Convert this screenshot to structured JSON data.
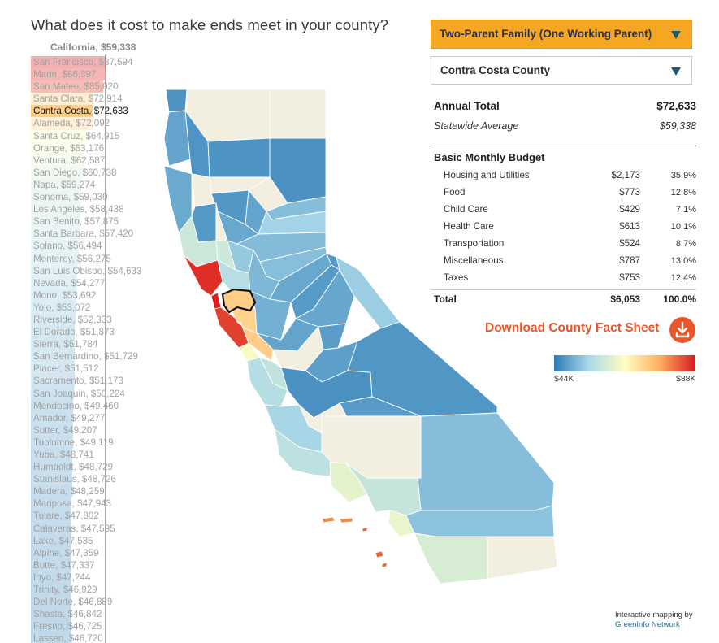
{
  "title": "What does it cost to make ends meet in your county?",
  "statewide_label": "California, $59,338",
  "family_dropdown": "Two-Parent Family (One Working Parent)",
  "county_dropdown": "Contra Costa County",
  "summary": {
    "annual_total_label": "Annual Total",
    "annual_total_value": "$72,633",
    "statewide_label": "Statewide Average",
    "statewide_value": "$59,338"
  },
  "budget": {
    "heading": "Basic Monthly Budget",
    "rows": [
      {
        "name": "Housing and Utilities",
        "amount": "$2,173",
        "percent": "35.9%"
      },
      {
        "name": "Food",
        "amount": "$773",
        "percent": "12.8%"
      },
      {
        "name": "Child Care",
        "amount": "$429",
        "percent": "7.1%"
      },
      {
        "name": "Health Care",
        "amount": "$613",
        "percent": "10.1%"
      },
      {
        "name": "Transportation",
        "amount": "$524",
        "percent": "8.7%"
      },
      {
        "name": "Miscellaneous",
        "amount": "$787",
        "percent": "13.0%"
      },
      {
        "name": "Taxes",
        "amount": "$753",
        "percent": "12.4%"
      }
    ],
    "total": {
      "name": "Total",
      "amount": "$6,053",
      "percent": "100.0%"
    }
  },
  "download_label": "Download County Fact Sheet",
  "legend": {
    "min_label": "$44K",
    "max_label": "$88K",
    "min_value": 44000,
    "max_value": 88000,
    "colors": [
      "#2c7bb6",
      "#abd9e9",
      "#ffffbf",
      "#fdae61",
      "#d7191c"
    ]
  },
  "credit_line1": "Interactive mapping by",
  "credit_line2": "GreenInfo Network",
  "selected_county": "Contra Costa",
  "counties": [
    {
      "label": "San Francisco, $87,594",
      "value": 87594
    },
    {
      "label": "Marin, $86,397",
      "value": 86397
    },
    {
      "label": "San Mateo, $85,020",
      "value": 85020
    },
    {
      "label": "Santa Clara, $72,914",
      "value": 72914
    },
    {
      "label": "Contra Costa, $72,633",
      "value": 72633
    },
    {
      "label": "Alameda, $72,092",
      "value": 72092
    },
    {
      "label": "Santa Cruz, $64,915",
      "value": 64915
    },
    {
      "label": "Orange, $63,176",
      "value": 63176
    },
    {
      "label": "Ventura, $62,587",
      "value": 62587
    },
    {
      "label": "San Diego, $60,738",
      "value": 60738
    },
    {
      "label": "Napa, $59,274",
      "value": 59274
    },
    {
      "label": "Sonoma, $59,030",
      "value": 59030
    },
    {
      "label": "Los Angeles, $58,438",
      "value": 58438
    },
    {
      "label": "San Benito, $57,875",
      "value": 57875
    },
    {
      "label": "Santa Barbara, $57,420",
      "value": 57420
    },
    {
      "label": "Solano, $56,494",
      "value": 56494
    },
    {
      "label": "Monterey, $56,275",
      "value": 56275
    },
    {
      "label": "San Luis Obispo, $54,633",
      "value": 54633
    },
    {
      "label": "Nevada, $54,277",
      "value": 54277
    },
    {
      "label": "Mono, $53,692",
      "value": 53692
    },
    {
      "label": "Yolo, $53,072",
      "value": 53072
    },
    {
      "label": "Riverside, $52,333",
      "value": 52333
    },
    {
      "label": "El Dorado, $51,873",
      "value": 51873
    },
    {
      "label": "Sierra, $51,784",
      "value": 51784
    },
    {
      "label": "San Bernardino, $51,729",
      "value": 51729
    },
    {
      "label": "Placer, $51,512",
      "value": 51512
    },
    {
      "label": "Sacramento, $51,173",
      "value": 51173
    },
    {
      "label": "San Joaquin, $50,224",
      "value": 50224
    },
    {
      "label": "Mendocino, $49,460",
      "value": 49460
    },
    {
      "label": "Amador, $49,277",
      "value": 49277
    },
    {
      "label": "Sutter, $49,207",
      "value": 49207
    },
    {
      "label": "Tuolumne, $49,119",
      "value": 49119
    },
    {
      "label": "Yuba, $48,741",
      "value": 48741
    },
    {
      "label": "Humboldt, $48,729",
      "value": 48729
    },
    {
      "label": "Stanislaus, $48,726",
      "value": 48726
    },
    {
      "label": "Madera, $48,259",
      "value": 48259
    },
    {
      "label": "Mariposa, $47,943",
      "value": 47943
    },
    {
      "label": "Tulare, $47,802",
      "value": 47802
    },
    {
      "label": "Calaveras, $47,595",
      "value": 47595
    },
    {
      "label": "Lake, $47,535",
      "value": 47535
    },
    {
      "label": "Alpine, $47,359",
      "value": 47359
    },
    {
      "label": "Butte, $47,337",
      "value": 47337
    },
    {
      "label": "Inyo, $47,244",
      "value": 47244
    },
    {
      "label": "Trinity, $46,929",
      "value": 46929
    },
    {
      "label": "Del Norte, $46,889",
      "value": 46889
    },
    {
      "label": "Shasta, $46,842",
      "value": 46842
    },
    {
      "label": "Fresno, $46,725",
      "value": 46725
    },
    {
      "label": "Lassen, $46,720",
      "value": 46720
    }
  ]
}
